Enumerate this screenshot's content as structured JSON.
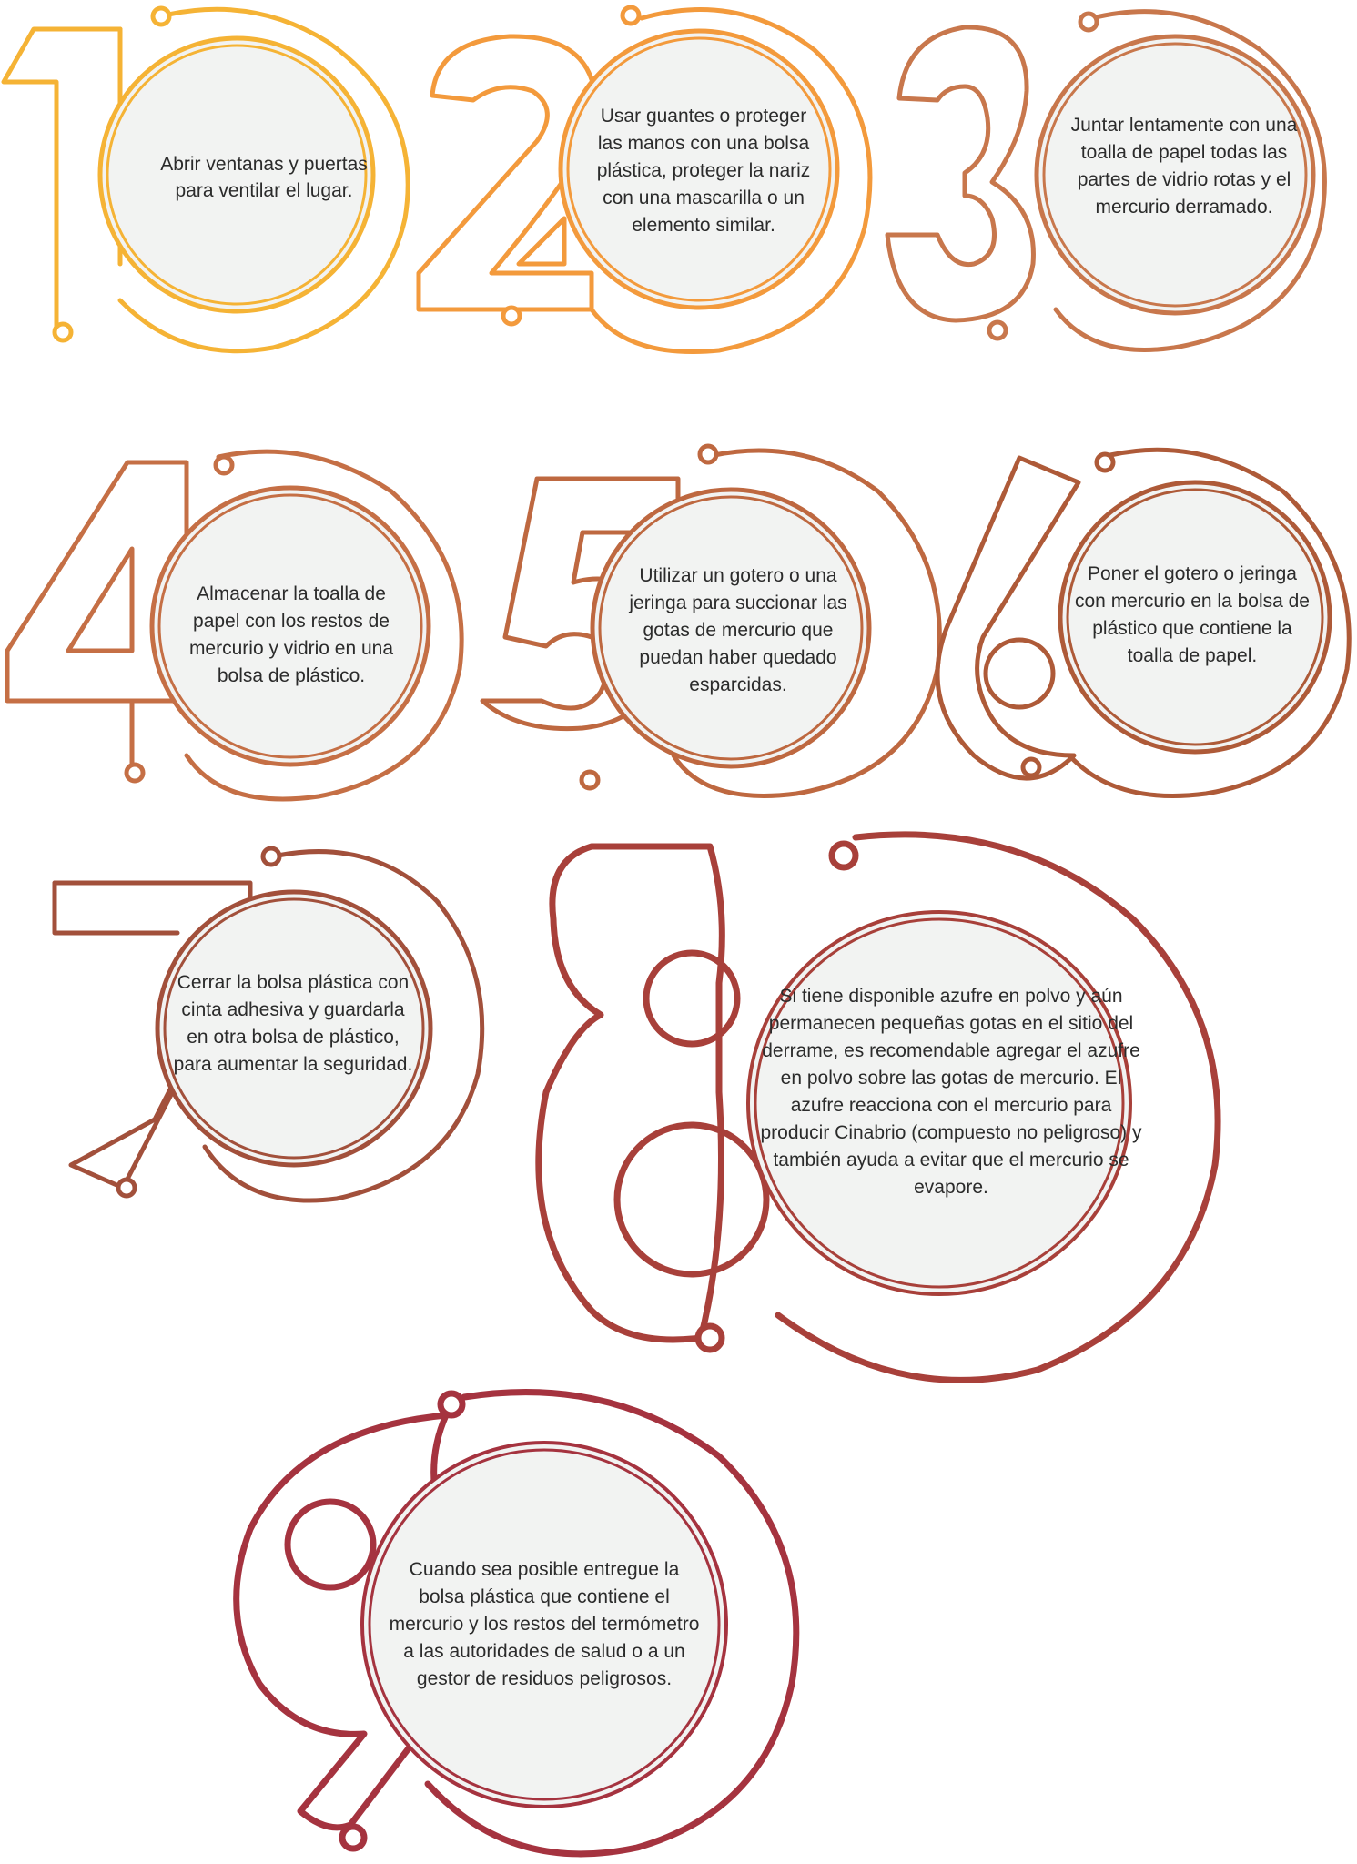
{
  "colors": {
    "step1": "#F5B335",
    "step2": "#F39A3C",
    "step3": "#C8774C",
    "step4": "#C56F45",
    "step5": "#BE6840",
    "step6": "#AE5A38",
    "step7": "#A2503B",
    "step8": "#A8403A",
    "step9": "#A5333F",
    "circle_fill": "#F2F3F2"
  },
  "steps": [
    {
      "number": "1",
      "text": "Abrir ventanas y puertas para ventilar el lugar."
    },
    {
      "number": "2",
      "text": "Usar guantes o proteger las manos con una bolsa plástica, proteger la nariz con una mascarilla o un elemento similar."
    },
    {
      "number": "3",
      "text": "Juntar lentamente con una toalla de papel todas las partes de vidrio rotas y el mercurio derramado."
    },
    {
      "number": "4",
      "text": "Almacenar la toalla de papel con los restos de mercurio y vidrio en una bolsa de plástico."
    },
    {
      "number": "5",
      "text": "Utilizar un gotero o una jeringa para succionar las gotas de mercurio que puedan haber quedado esparcidas."
    },
    {
      "number": "6",
      "text": "Poner el gotero o jeringa con mercurio en la bolsa de plástico que contiene la toalla de papel."
    },
    {
      "number": "7",
      "text": "Cerrar la bolsa plástica con cinta adhesiva y guardarla en otra bolsa de plástico, para aumentar la seguridad."
    },
    {
      "number": "8",
      "text": "Si tiene disponible azufre en polvo y aún permanecen pequeñas gotas en el sitio del derrame, es recomendable agregar el azufre en polvo sobre las gotas de mercurio. El azufre reacciona con el mercurio para producir Cinabrio (compuesto no peligroso) y también ayuda a evitar que el mercurio se evapore."
    },
    {
      "number": "9",
      "text": "Cuando sea posible entregue la bolsa plástica que contiene el mercurio y los restos del termómetro a las autoridades de salud o a un gestor de residuos peligrosos."
    }
  ]
}
